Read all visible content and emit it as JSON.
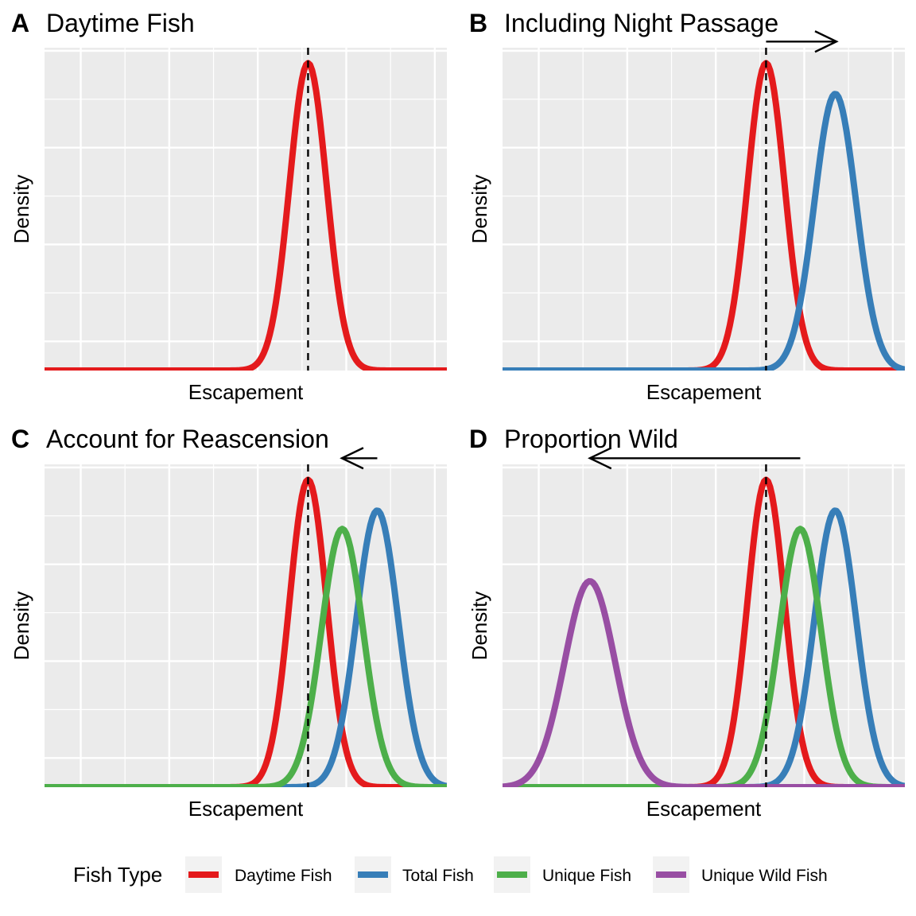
{
  "chart_data": [
    {
      "type": "line",
      "panel_letter": "A",
      "title": "Daytime Fish",
      "xlabel": "Escapement",
      "ylabel": "Density",
      "xlim": [
        0,
        100
      ],
      "ylim": [
        0,
        1.05
      ],
      "grid": true,
      "reference_line_x": 65.5,
      "arrow": null,
      "series": [
        {
          "name": "Daytime Fish",
          "color": "#E41A1C",
          "mean": 65.5,
          "sd": 4.6,
          "peak": 1.0
        }
      ]
    },
    {
      "type": "line",
      "panel_letter": "B",
      "title": "Including Night Passage",
      "xlabel": "Escapement",
      "ylabel": "Density",
      "xlim": [
        0,
        100
      ],
      "ylim": [
        0,
        1.05
      ],
      "grid": true,
      "reference_line_x": 65.5,
      "arrow": {
        "from_x": 65.5,
        "to_x": 83.0,
        "y": 1.07
      },
      "series": [
        {
          "name": "Daytime Fish",
          "color": "#E41A1C",
          "mean": 65.5,
          "sd": 4.6,
          "peak": 1.0
        },
        {
          "name": "Total Fish",
          "color": "#377EB8",
          "mean": 82.7,
          "sd": 5.2,
          "peak": 0.9
        }
      ]
    },
    {
      "type": "line",
      "panel_letter": "C",
      "title": "Account for Reascension",
      "xlabel": "Escapement",
      "ylabel": "Density",
      "xlim": [
        0,
        100
      ],
      "ylim": [
        0,
        1.05
      ],
      "grid": true,
      "reference_line_x": 65.5,
      "arrow": {
        "from_x": 82.7,
        "to_x": 73.9,
        "y": 1.07
      },
      "series": [
        {
          "name": "Daytime Fish",
          "color": "#E41A1C",
          "mean": 65.5,
          "sd": 4.6,
          "peak": 1.0
        },
        {
          "name": "Total Fish",
          "color": "#377EB8",
          "mean": 82.7,
          "sd": 5.2,
          "peak": 0.9
        },
        {
          "name": "Unique Fish",
          "color": "#4DAF4A",
          "mean": 74.0,
          "sd": 5.2,
          "peak": 0.84
        }
      ]
    },
    {
      "type": "line",
      "panel_letter": "D",
      "title": "Proportion Wild",
      "xlabel": "Escapement",
      "ylabel": "Density",
      "xlim": [
        0,
        100
      ],
      "ylim": [
        0,
        1.05
      ],
      "grid": true,
      "reference_line_x": 65.5,
      "arrow": {
        "from_x": 74.0,
        "to_x": 21.7,
        "y": 1.07
      },
      "series": [
        {
          "name": "Daytime Fish",
          "color": "#E41A1C",
          "mean": 65.5,
          "sd": 4.6,
          "peak": 1.0
        },
        {
          "name": "Total Fish",
          "color": "#377EB8",
          "mean": 82.7,
          "sd": 5.2,
          "peak": 0.9
        },
        {
          "name": "Unique Fish",
          "color": "#4DAF4A",
          "mean": 74.0,
          "sd": 5.2,
          "peak": 0.84
        },
        {
          "name": "Unique Wild Fish",
          "color": "#984EA3",
          "mean": 21.7,
          "sd": 6.3,
          "peak": 0.67
        }
      ]
    }
  ],
  "legend": {
    "title": "Fish Type",
    "placement": "bottom",
    "entries": [
      {
        "label": "Daytime Fish",
        "color": "#E41A1C"
      },
      {
        "label": "Total Fish",
        "color": "#377EB8"
      },
      {
        "label": "Unique Fish",
        "color": "#4DAF4A"
      },
      {
        "label": "Unique Wild Fish",
        "color": "#984EA3"
      }
    ]
  }
}
